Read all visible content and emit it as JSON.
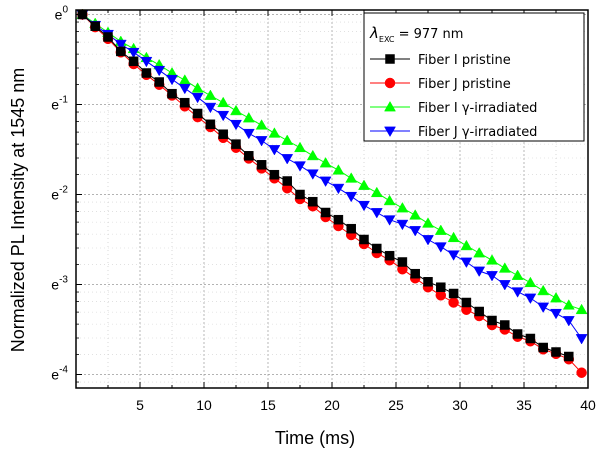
{
  "chart_data": {
    "type": "line",
    "title": "",
    "xlabel": "Time (ms)",
    "ylabel": "Normalized PL Intensity at 1545 nm",
    "xlim": [
      0,
      40
    ],
    "ylim_exponent": [
      -4.15,
      0.05
    ],
    "y_scale": "natural log (base e)",
    "x_ticks": [
      5,
      10,
      15,
      20,
      25,
      30,
      35,
      40
    ],
    "y_ticks": [
      {
        "base": "e",
        "exp": "0"
      },
      {
        "base": "e",
        "exp": "-1"
      },
      {
        "base": "e",
        "exp": "-2"
      },
      {
        "base": "e",
        "exp": "-3"
      },
      {
        "base": "e",
        "exp": "-4"
      }
    ],
    "grid": true,
    "legend_position": "top-right",
    "legend_header": {
      "symbol": "λ",
      "subscript": "EXC",
      "text": " = 977 nm"
    },
    "series": [
      {
        "name": "Fiber I pristine",
        "color": "#000000",
        "marker": "square",
        "x": [
          0.5,
          1.5,
          2.5,
          3.5,
          4.5,
          5.5,
          6.5,
          7.5,
          8.5,
          9.5,
          10.5,
          11.5,
          12.5,
          13.5,
          14.5,
          15.5,
          16.5,
          17.5,
          18.5,
          19.5,
          20.5,
          21.5,
          22.5,
          23.5,
          24.5,
          25.5,
          26.5,
          27.5,
          28.5,
          29.5,
          30.5,
          31.5,
          32.5,
          33.5,
          34.5,
          35.5,
          36.5,
          37.5,
          38.5
        ],
        "ln_y": [
          0,
          -0.13,
          -0.25,
          -0.41,
          -0.52,
          -0.65,
          -0.75,
          -0.88,
          -0.98,
          -1.1,
          -1.22,
          -1.33,
          -1.44,
          -1.57,
          -1.67,
          -1.78,
          -1.85,
          -2.0,
          -2.08,
          -2.2,
          -2.28,
          -2.38,
          -2.5,
          -2.6,
          -2.68,
          -2.75,
          -2.88,
          -2.97,
          -3.03,
          -3.1,
          -3.2,
          -3.3,
          -3.4,
          -3.45,
          -3.55,
          -3.6,
          -3.7,
          -3.75,
          -3.8
        ]
      },
      {
        "name": "Fiber J pristine",
        "color": "#ff0000",
        "marker": "circle",
        "x": [
          0.5,
          1.5,
          2.5,
          3.5,
          4.5,
          5.5,
          6.5,
          7.5,
          8.5,
          9.5,
          10.5,
          11.5,
          12.5,
          13.5,
          14.5,
          15.5,
          16.5,
          17.5,
          18.5,
          19.5,
          20.5,
          21.5,
          22.5,
          23.5,
          24.5,
          25.5,
          26.5,
          27.5,
          28.5,
          29.5,
          30.5,
          31.5,
          32.5,
          33.5,
          34.5,
          35.5,
          36.5,
          37.5,
          38.5,
          39.5
        ],
        "ln_y": [
          0,
          -0.14,
          -0.27,
          -0.42,
          -0.55,
          -0.67,
          -0.78,
          -0.9,
          -1.02,
          -1.14,
          -1.25,
          -1.37,
          -1.48,
          -1.6,
          -1.71,
          -1.82,
          -1.93,
          -2.05,
          -2.13,
          -2.25,
          -2.35,
          -2.45,
          -2.55,
          -2.65,
          -2.73,
          -2.83,
          -2.93,
          -3.03,
          -3.12,
          -3.2,
          -3.28,
          -3.35,
          -3.45,
          -3.5,
          -3.58,
          -3.63,
          -3.72,
          -3.77,
          -3.83,
          -3.98
        ]
      },
      {
        "name": "Fiber I γ-irradiated",
        "color": "#00ff00",
        "marker": "triangle-up",
        "x": [
          0.5,
          1.5,
          2.5,
          3.5,
          4.5,
          5.5,
          6.5,
          7.5,
          8.5,
          9.5,
          10.5,
          11.5,
          12.5,
          13.5,
          14.5,
          15.5,
          16.5,
          17.5,
          18.5,
          19.5,
          20.5,
          21.5,
          22.5,
          23.5,
          24.5,
          25.5,
          26.5,
          27.5,
          28.5,
          29.5,
          30.5,
          31.5,
          32.5,
          33.5,
          34.5,
          35.5,
          36.5,
          37.5,
          38.5,
          39.5
        ],
        "ln_y": [
          0,
          -0.1,
          -0.2,
          -0.3,
          -0.38,
          -0.48,
          -0.56,
          -0.65,
          -0.73,
          -0.82,
          -0.9,
          -0.98,
          -1.07,
          -1.15,
          -1.23,
          -1.32,
          -1.4,
          -1.48,
          -1.57,
          -1.65,
          -1.73,
          -1.82,
          -1.9,
          -1.98,
          -2.07,
          -2.15,
          -2.23,
          -2.32,
          -2.4,
          -2.48,
          -2.57,
          -2.65,
          -2.73,
          -2.82,
          -2.9,
          -2.98,
          -3.07,
          -3.15,
          -3.23,
          -3.28
        ]
      },
      {
        "name": "Fiber J γ-irradiated",
        "color": "#0000ff",
        "marker": "triangle-down",
        "x": [
          0.5,
          1.5,
          2.5,
          3.5,
          4.5,
          5.5,
          6.5,
          7.5,
          8.5,
          9.5,
          10.5,
          11.5,
          12.5,
          13.5,
          14.5,
          15.5,
          16.5,
          17.5,
          18.5,
          19.5,
          20.5,
          21.5,
          22.5,
          23.5,
          24.5,
          25.5,
          26.5,
          27.5,
          28.5,
          29.5,
          30.5,
          31.5,
          32.5,
          33.5,
          34.5,
          35.5,
          36.5,
          37.5,
          38.5,
          39.5
        ],
        "ln_y": [
          0,
          -0.12,
          -0.22,
          -0.33,
          -0.42,
          -0.52,
          -0.62,
          -0.72,
          -0.82,
          -0.92,
          -1.03,
          -1.12,
          -1.22,
          -1.32,
          -1.4,
          -1.5,
          -1.6,
          -1.68,
          -1.77,
          -1.85,
          -1.93,
          -2.02,
          -2.12,
          -2.2,
          -2.28,
          -2.33,
          -2.4,
          -2.5,
          -2.58,
          -2.67,
          -2.75,
          -2.85,
          -2.9,
          -3.0,
          -3.08,
          -3.15,
          -3.25,
          -3.32,
          -3.4,
          -3.6
        ]
      }
    ]
  }
}
